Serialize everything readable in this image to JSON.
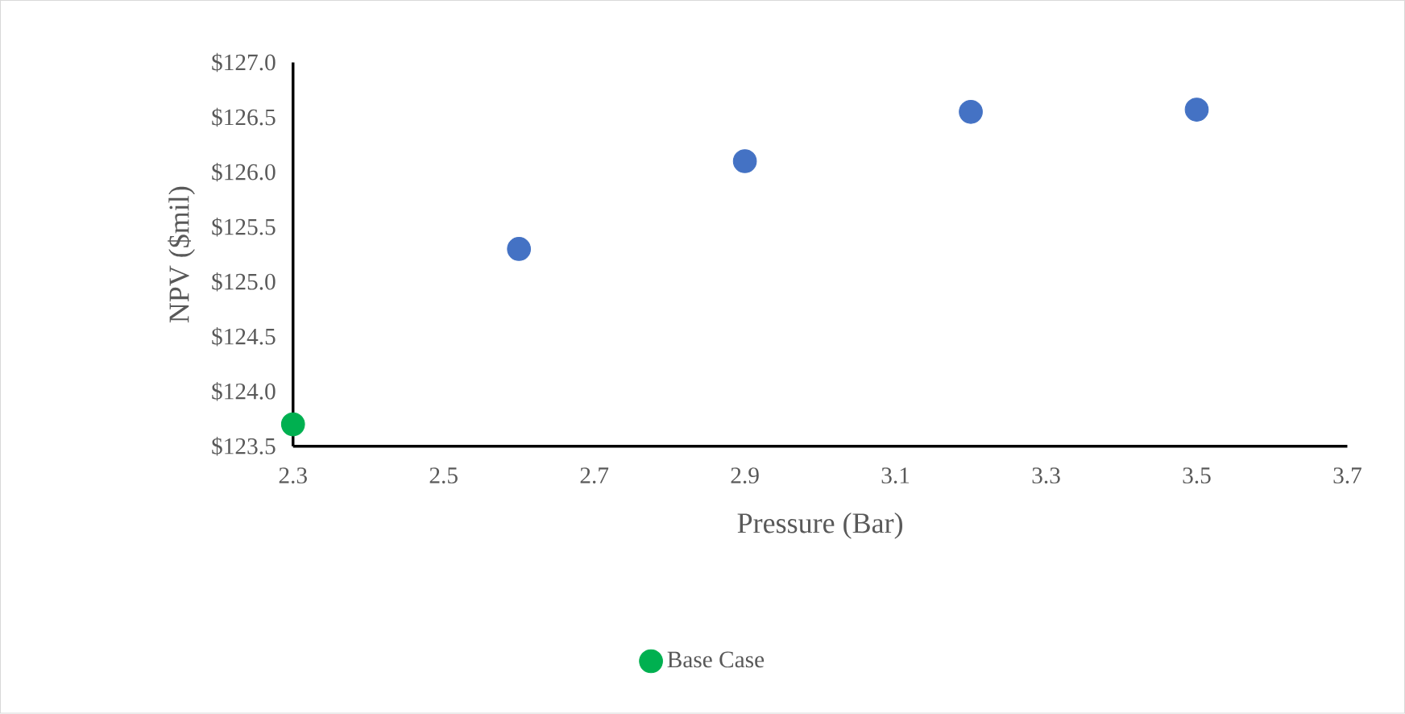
{
  "chart_data": {
    "type": "scatter",
    "xlabel": "Pressure (Bar)",
    "ylabel": "NPV ($mil)",
    "xlim": [
      2.3,
      3.7
    ],
    "xticks": [
      2.3,
      2.5,
      2.7,
      2.9,
      3.1,
      3.3,
      3.5,
      3.7
    ],
    "ylim": [
      123.5,
      127.0
    ],
    "yticks": [
      {
        "value": 123.5,
        "label": "$123.5"
      },
      {
        "value": 124.0,
        "label": "$124.0"
      },
      {
        "value": 124.5,
        "label": "$124.5"
      },
      {
        "value": 125.0,
        "label": "$125.0"
      },
      {
        "value": 125.5,
        "label": "$125.5"
      },
      {
        "value": 126.0,
        "label": "$126.0"
      },
      {
        "value": 126.5,
        "label": "$126.5"
      },
      {
        "value": 127.0,
        "label": "$127.0"
      }
    ],
    "series": [
      {
        "color": "#4472c4",
        "x": [
          2.6,
          2.9,
          3.2,
          3.5
        ],
        "values": [
          125.3,
          126.1,
          126.55,
          126.57
        ]
      },
      {
        "name": "Base Case",
        "color": "#00b050",
        "x": [
          2.3
        ],
        "values": [
          123.7
        ]
      }
    ],
    "marker": "circle",
    "grid": false,
    "legend": "bottom"
  }
}
